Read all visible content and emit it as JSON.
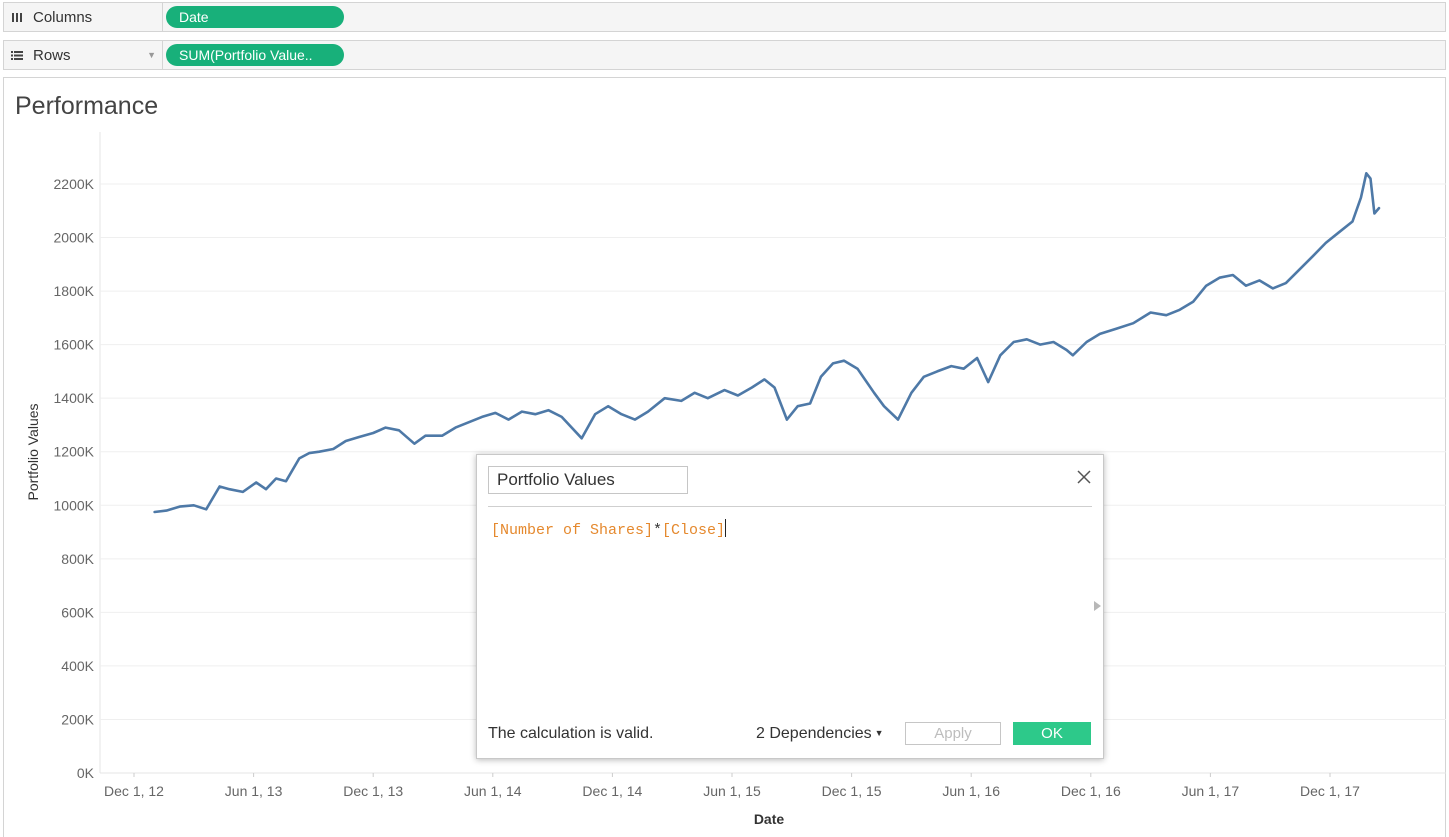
{
  "shelves": {
    "columns": {
      "label": "Columns",
      "icon": "columns-icon",
      "pill": "Date"
    },
    "rows": {
      "label": "Rows",
      "icon": "rows-icon",
      "pill": "SUM(Portfolio Value.."
    }
  },
  "view": {
    "title": "Performance"
  },
  "chart_data": {
    "type": "line",
    "title": "Performance",
    "xlabel": "Date",
    "ylabel": "Portfolio Values",
    "x_ticks": [
      "Dec 1, 12",
      "Jun 1, 13",
      "Dec 1, 13",
      "Jun 1, 14",
      "Dec 1, 14",
      "Jun 1, 15",
      "Dec 1, 15",
      "Jun 1, 16",
      "Dec 1, 16",
      "Jun 1, 17",
      "Dec 1, 17"
    ],
    "y_ticks": [
      "0K",
      "200K",
      "400K",
      "600K",
      "800K",
      "1000K",
      "1200K",
      "1400K",
      "1600K",
      "1800K",
      "2000K",
      "2200K"
    ],
    "ylim": [
      0,
      2300000
    ],
    "grid": true,
    "line_color": "#4e79a7",
    "series": [
      {
        "x": [
          "2013-01-02",
          "2013-01-20",
          "2013-02-10",
          "2013-03-01",
          "2013-03-20",
          "2013-04-10",
          "2013-04-25",
          "2013-05-15",
          "2013-06-05",
          "2013-06-20",
          "2013-07-05",
          "2013-07-20",
          "2013-08-10",
          "2013-08-25",
          "2013-09-10",
          "2013-10-01",
          "2013-10-20",
          "2013-11-10",
          "2013-12-01",
          "2013-12-20",
          "2014-01-10",
          "2014-02-03",
          "2014-02-20",
          "2014-03-15",
          "2014-04-05",
          "2014-04-25",
          "2014-05-15",
          "2014-06-05",
          "2014-06-25",
          "2014-07-15",
          "2014-08-05",
          "2014-08-25",
          "2014-09-15",
          "2014-10-15",
          "2014-11-05",
          "2014-11-25",
          "2014-12-15",
          "2015-01-05",
          "2015-01-25",
          "2015-02-20",
          "2015-03-15",
          "2015-04-05",
          "2015-04-25",
          "2015-05-20",
          "2015-06-10",
          "2015-07-01",
          "2015-07-20",
          "2015-08-05",
          "2015-08-24",
          "2015-09-10",
          "2015-09-29",
          "2015-10-15",
          "2015-11-03",
          "2015-11-20",
          "2015-12-10",
          "2016-01-05",
          "2016-01-20",
          "2016-02-11",
          "2016-03-01",
          "2016-03-20",
          "2016-04-10",
          "2016-05-01",
          "2016-05-20",
          "2016-06-10",
          "2016-06-27",
          "2016-07-15",
          "2016-08-05",
          "2016-08-25",
          "2016-09-15",
          "2016-10-05",
          "2016-10-25",
          "2016-11-04",
          "2016-11-25",
          "2016-12-15",
          "2017-01-10",
          "2017-02-05",
          "2017-03-01",
          "2017-03-25",
          "2017-04-15",
          "2017-05-05",
          "2017-05-25",
          "2017-06-15",
          "2017-07-05",
          "2017-07-25",
          "2017-08-15",
          "2017-09-05",
          "2017-09-25",
          "2017-10-15",
          "2017-11-05",
          "2017-11-25",
          "2017-12-15",
          "2018-01-05",
          "2018-01-18",
          "2018-01-26",
          "2018-02-02",
          "2018-02-08",
          "2018-02-15"
        ],
        "y": [
          975000,
          980000,
          995000,
          1000000,
          985000,
          1070000,
          1060000,
          1050000,
          1085000,
          1060000,
          1100000,
          1090000,
          1175000,
          1195000,
          1200000,
          1210000,
          1240000,
          1255000,
          1270000,
          1290000,
          1280000,
          1230000,
          1260000,
          1260000,
          1290000,
          1310000,
          1330000,
          1345000,
          1320000,
          1350000,
          1340000,
          1355000,
          1330000,
          1250000,
          1340000,
          1370000,
          1340000,
          1320000,
          1350000,
          1400000,
          1390000,
          1420000,
          1400000,
          1430000,
          1410000,
          1440000,
          1470000,
          1440000,
          1320000,
          1370000,
          1380000,
          1480000,
          1530000,
          1540000,
          1510000,
          1420000,
          1370000,
          1320000,
          1420000,
          1480000,
          1500000,
          1520000,
          1510000,
          1550000,
          1460000,
          1560000,
          1610000,
          1620000,
          1600000,
          1610000,
          1580000,
          1560000,
          1610000,
          1640000,
          1660000,
          1680000,
          1720000,
          1710000,
          1730000,
          1760000,
          1820000,
          1850000,
          1860000,
          1820000,
          1840000,
          1810000,
          1830000,
          1880000,
          1930000,
          1980000,
          2020000,
          2060000,
          2150000,
          2240000,
          2220000,
          2090000,
          2110000
        ]
      }
    ]
  },
  "dialog": {
    "calc_name": "Portfolio Values",
    "formula": {
      "field1": "[Number of Shares]",
      "operator": "*",
      "field2": "[Close]"
    },
    "status": "The calculation is valid.",
    "dependencies": "2 Dependencies",
    "apply_label": "Apply",
    "ok_label": "OK"
  }
}
